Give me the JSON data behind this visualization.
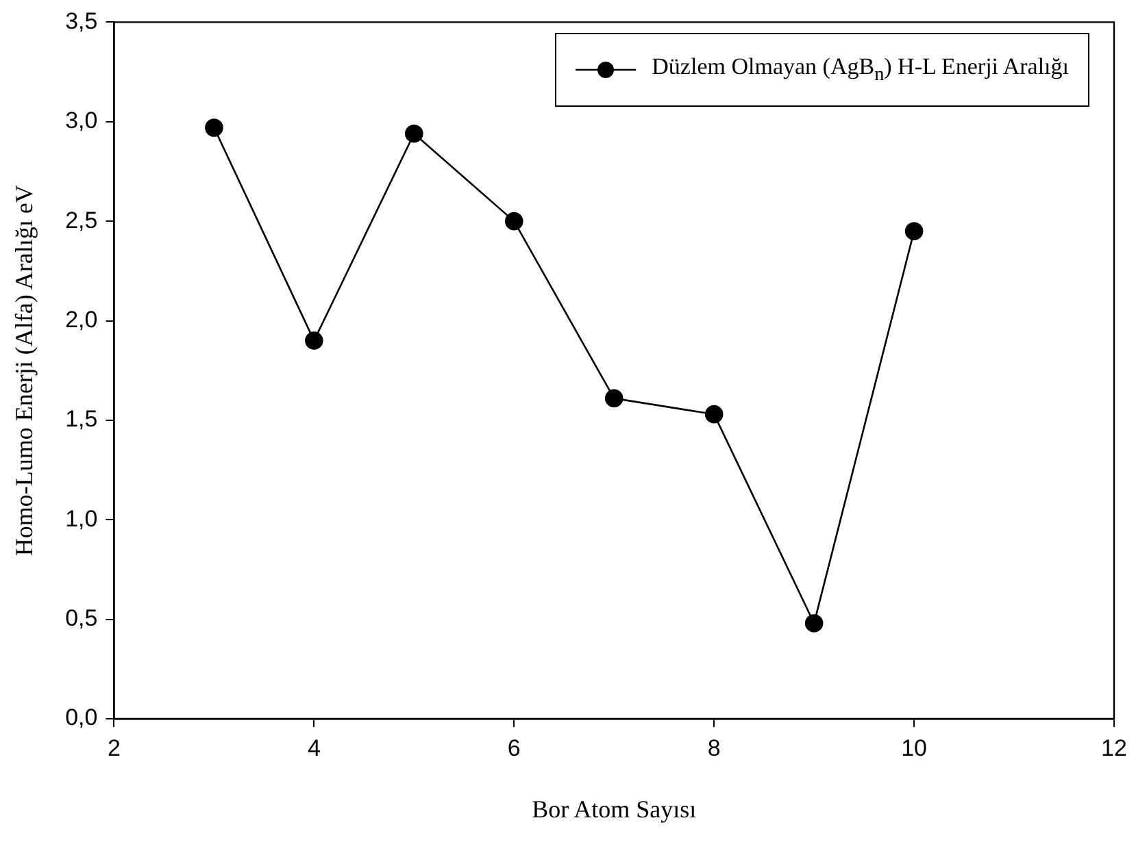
{
  "chart_data": {
    "type": "line",
    "xlabel": "Bor Atom Sayısı",
    "ylabel": "Homo-Lumo Enerji (Alfa) Aralığı eV",
    "x": [
      3,
      4,
      5,
      6,
      7,
      8,
      9,
      10
    ],
    "series": [
      {
        "name": "Düzlem Olmayan (AgB$_{n}$) H-L Enerji Aralığı",
        "color": "#000000",
        "values": [
          2.97,
          1.9,
          2.94,
          2.5,
          1.61,
          1.53,
          0.48,
          2.45
        ]
      }
    ],
    "xlim": [
      2,
      12
    ],
    "xticks": [
      2,
      4,
      6,
      8,
      10,
      12
    ],
    "ylim": [
      0,
      3.5
    ],
    "yticks": [
      {
        "value": 0,
        "label": "0,0"
      },
      {
        "value": 0.5,
        "label": "0,5"
      },
      {
        "value": 1,
        "label": "1,0"
      },
      {
        "value": 1.5,
        "label": "1,5"
      },
      {
        "value": 2,
        "label": "2,0"
      },
      {
        "value": 2.5,
        "label": "2,5"
      },
      {
        "value": 3,
        "label": "3,0"
      },
      {
        "value": 3.5,
        "label": "3,5"
      }
    ],
    "grid": false,
    "legend": "top right",
    "marker": "circle",
    "line_style": "solid"
  }
}
